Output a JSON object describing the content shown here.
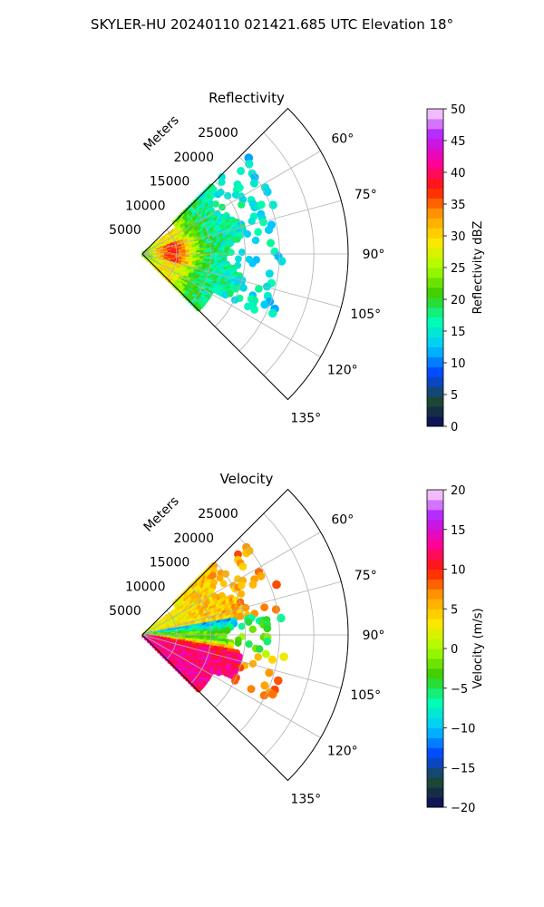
{
  "suptitle": "SKYLER-HU  20240110  021421.685 UTC Elevation 18°",
  "chart_data": [
    {
      "type": "heatmap",
      "projection": "polar-sector",
      "title": "Reflectivity",
      "radial_label": "Meters",
      "range_ticks": [
        "5000",
        "10000",
        "15000",
        "20000",
        "25000"
      ],
      "range_values": [
        5000,
        10000,
        15000,
        20000,
        25000
      ],
      "range_max": 30000,
      "azimuth_ticks": [
        "60°",
        "75°",
        "90°",
        "105°",
        "120°",
        "135°"
      ],
      "azimuth_values": [
        60,
        75,
        90,
        105,
        120,
        135
      ],
      "azimuth_range": [
        45,
        135
      ],
      "grid": true,
      "colorbar": {
        "label": "Reflectivity dBZ",
        "min": 0,
        "max": 50,
        "ticks": [
          "0",
          "5",
          "10",
          "15",
          "20",
          "25",
          "30",
          "35",
          "40",
          "45",
          "50"
        ],
        "colormap": [
          "#0a0a5a",
          "#1d4a34",
          "#0044ff",
          "#00c8ff",
          "#00ffb0",
          "#3ccc00",
          "#a8ff00",
          "#ffe600",
          "#ff9a00",
          "#ff1a00",
          "#ff00a0",
          "#b020ff",
          "#ffe0ff"
        ]
      }
    },
    {
      "type": "heatmap",
      "projection": "polar-sector",
      "title": "Velocity",
      "radial_label": "Meters",
      "range_ticks": [
        "5000",
        "10000",
        "15000",
        "20000",
        "25000"
      ],
      "range_values": [
        5000,
        10000,
        15000,
        20000,
        25000
      ],
      "range_max": 30000,
      "azimuth_ticks": [
        "60°",
        "75°",
        "90°",
        "105°",
        "120°",
        "135°"
      ],
      "azimuth_values": [
        60,
        75,
        90,
        105,
        120,
        135
      ],
      "azimuth_range": [
        45,
        135
      ],
      "grid": true,
      "colorbar": {
        "label": "Velocity (m/s)",
        "min": -20,
        "max": 20,
        "ticks": [
          "−20",
          "−15",
          "−10",
          "−5",
          "0",
          "5",
          "10",
          "15",
          "20"
        ],
        "colormap": [
          "#0a0a5a",
          "#1d4a34",
          "#0044ff",
          "#00c8ff",
          "#00ffb0",
          "#3ccc00",
          "#a8ff00",
          "#ffe600",
          "#ff9a00",
          "#ff1a00",
          "#ff00a0",
          "#b020ff",
          "#ffe0ff"
        ]
      }
    }
  ]
}
